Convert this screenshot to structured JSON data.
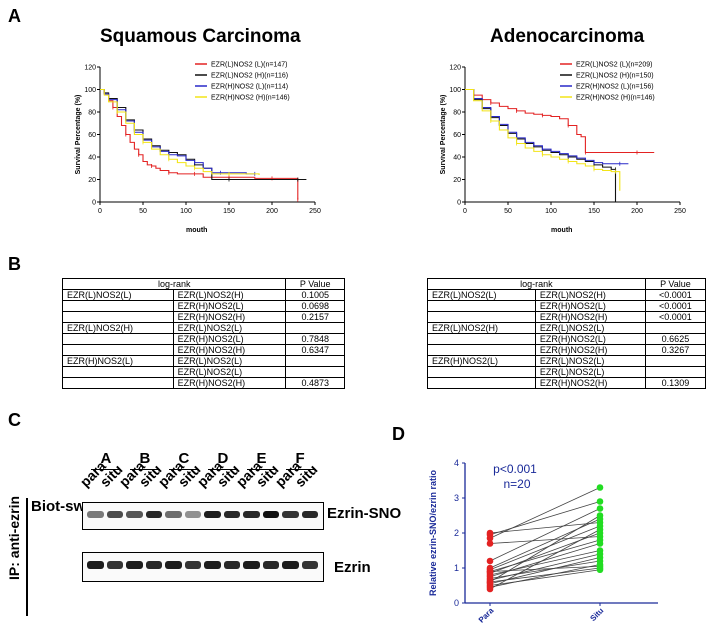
{
  "panels": {
    "a": "A",
    "b": "B",
    "c": "C",
    "d": "D"
  },
  "km": [
    {
      "title": "Squamous Carcinoma",
      "ylabel": "Survival Percentage (%)",
      "xlabel": "mouth",
      "xticks": [
        0,
        50,
        100,
        150,
        200,
        250
      ],
      "yticks": [
        0,
        20,
        40,
        60,
        80,
        100,
        120
      ],
      "legend": [
        "EZR(L)NOS2 (L)(n=147)",
        "EZR(L)NOS2 (H)(n=116)",
        "EZR(H)NOS2 (L)(n=114)",
        "EZR(H)NOS2 (H)(n=146)"
      ],
      "series": [
        {
          "color": "#e32222",
          "points": [
            [
              0,
              100
            ],
            [
              5,
              96
            ],
            [
              10,
              90
            ],
            [
              15,
              84
            ],
            [
              20,
              76
            ],
            [
              25,
              68
            ],
            [
              30,
              60
            ],
            [
              35,
              53
            ],
            [
              40,
              47
            ],
            [
              45,
              42
            ],
            [
              50,
              36
            ],
            [
              55,
              33
            ],
            [
              60,
              32
            ],
            [
              65,
              30
            ],
            [
              70,
              28
            ],
            [
              80,
              26
            ],
            [
              90,
              25
            ],
            [
              100,
              25
            ],
            [
              110,
              25
            ],
            [
              120,
              22
            ],
            [
              130,
              22
            ],
            [
              150,
              22
            ],
            [
              170,
              22
            ],
            [
              180,
              21
            ],
            [
              200,
              21
            ],
            [
              210,
              21
            ],
            [
              230,
              21
            ],
            [
              230,
              2
            ]
          ]
        },
        {
          "color": "#111111",
          "points": [
            [
              0,
              100
            ],
            [
              5,
              97
            ],
            [
              10,
              92
            ],
            [
              20,
              84
            ],
            [
              30,
              73
            ],
            [
              40,
              64
            ],
            [
              50,
              56
            ],
            [
              60,
              50
            ],
            [
              70,
              46
            ],
            [
              80,
              44
            ],
            [
              90,
              42
            ],
            [
              100,
              38
            ],
            [
              110,
              33
            ],
            [
              120,
              30
            ],
            [
              130,
              20
            ],
            [
              150,
              20
            ],
            [
              170,
              20
            ],
            [
              200,
              20
            ],
            [
              230,
              20
            ],
            [
              240,
              20
            ]
          ]
        },
        {
          "color": "#2828c8",
          "points": [
            [
              0,
              100
            ],
            [
              5,
              96
            ],
            [
              10,
              91
            ],
            [
              20,
              82
            ],
            [
              30,
              72
            ],
            [
              40,
              62
            ],
            [
              50,
              55
            ],
            [
              60,
              49
            ],
            [
              70,
              45
            ],
            [
              80,
              42
            ],
            [
              90,
              41
            ],
            [
              100,
              37
            ],
            [
              110,
              35
            ],
            [
              120,
              30
            ],
            [
              130,
              26
            ],
            [
              140,
              26
            ],
            [
              160,
              26
            ],
            [
              170,
              25
            ],
            [
              180,
              25
            ]
          ]
        },
        {
          "color": "#f2e418",
          "points": [
            [
              0,
              100
            ],
            [
              5,
              95
            ],
            [
              10,
              89
            ],
            [
              20,
              80
            ],
            [
              30,
              70
            ],
            [
              40,
              60
            ],
            [
              50,
              53
            ],
            [
              60,
              47
            ],
            [
              70,
              42
            ],
            [
              80,
              38
            ],
            [
              90,
              35
            ],
            [
              100,
              32
            ],
            [
              110,
              30
            ],
            [
              120,
              27
            ],
            [
              130,
              25
            ],
            [
              150,
              25
            ],
            [
              170,
              25
            ],
            [
              185,
              24
            ]
          ]
        }
      ]
    },
    {
      "title": "Adenocarcinoma",
      "ylabel": "Survival Percentage (%)",
      "xlabel": "mouth",
      "xticks": [
        0,
        50,
        100,
        150,
        200,
        250
      ],
      "yticks": [
        0,
        20,
        40,
        60,
        80,
        100,
        120
      ],
      "legend": [
        "EZR(L)NOS2 (L)(n=209)",
        "EZR(L)NOS2 (H)(n=150)",
        "EZR(H)NOS2 (L)(n=156)",
        "EZR(H)NOS2 (H)(n=146)"
      ],
      "series": [
        {
          "color": "#e32222",
          "points": [
            [
              0,
              100
            ],
            [
              10,
              95
            ],
            [
              20,
              91
            ],
            [
              30,
              88
            ],
            [
              40,
              85
            ],
            [
              50,
              83
            ],
            [
              60,
              81
            ],
            [
              70,
              79
            ],
            [
              80,
              78
            ],
            [
              90,
              77
            ],
            [
              100,
              76
            ],
            [
              110,
              74
            ],
            [
              120,
              68
            ],
            [
              130,
              60
            ],
            [
              135,
              58
            ],
            [
              140,
              44
            ],
            [
              160,
              44
            ],
            [
              180,
              44
            ],
            [
              200,
              44
            ],
            [
              220,
              44
            ]
          ]
        },
        {
          "color": "#111111",
          "points": [
            [
              0,
              100
            ],
            [
              10,
              91
            ],
            [
              20,
              83
            ],
            [
              30,
              75
            ],
            [
              40,
              68
            ],
            [
              50,
              61
            ],
            [
              60,
              56
            ],
            [
              70,
              52
            ],
            [
              80,
              49
            ],
            [
              90,
              46
            ],
            [
              100,
              44
            ],
            [
              110,
              42
            ],
            [
              120,
              40
            ],
            [
              130,
              38
            ],
            [
              140,
              36
            ],
            [
              150,
              33
            ],
            [
              160,
              31
            ],
            [
              170,
              29
            ],
            [
              175,
              29
            ],
            [
              175,
              0
            ]
          ]
        },
        {
          "color": "#2828c8",
          "points": [
            [
              0,
              100
            ],
            [
              10,
              92
            ],
            [
              20,
              84
            ],
            [
              30,
              76
            ],
            [
              40,
              69
            ],
            [
              50,
              62
            ],
            [
              60,
              57
            ],
            [
              70,
              53
            ],
            [
              80,
              50
            ],
            [
              90,
              47
            ],
            [
              100,
              45
            ],
            [
              110,
              43
            ],
            [
              120,
              41
            ],
            [
              130,
              39
            ],
            [
              140,
              37
            ],
            [
              150,
              35
            ],
            [
              160,
              34
            ],
            [
              170,
              34
            ],
            [
              180,
              34
            ],
            [
              190,
              34
            ]
          ]
        },
        {
          "color": "#f2e418",
          "points": [
            [
              0,
              100
            ],
            [
              10,
              90
            ],
            [
              20,
              81
            ],
            [
              30,
              72
            ],
            [
              40,
              64
            ],
            [
              50,
              57
            ],
            [
              60,
              52
            ],
            [
              70,
              48
            ],
            [
              80,
              45
            ],
            [
              90,
              42
            ],
            [
              100,
              40
            ],
            [
              110,
              38
            ],
            [
              120,
              36
            ],
            [
              130,
              34
            ],
            [
              140,
              32
            ],
            [
              150,
              29
            ],
            [
              160,
              28
            ],
            [
              170,
              27
            ],
            [
              175,
              27
            ],
            [
              180,
              20
            ],
            [
              180,
              10
            ]
          ]
        }
      ]
    }
  ],
  "tables": [
    {
      "header": [
        "log-rank",
        "P Value"
      ],
      "rows": [
        [
          "EZR(L)NOS2(L)",
          "EZR(L)NOS2(H)",
          "0.1005"
        ],
        [
          "",
          "EZR(H)NOS2(L)",
          "0.0698"
        ],
        [
          "",
          "EZR(H)NOS2(H)",
          "0.2157"
        ],
        [
          "EZR(L)NOS2(H)",
          "EZR(L)NOS2(L)",
          ""
        ],
        [
          "",
          "EZR(H)NOS2(L)",
          "0.7848"
        ],
        [
          "",
          "EZR(H)NOS2(H)",
          "0.6347"
        ],
        [
          "EZR(H)NOS2(L)",
          "EZR(L)NOS2(L)",
          ""
        ],
        [
          "",
          "EZR(L)NOS2(L)",
          ""
        ],
        [
          "",
          "EZR(H)NOS2(H)",
          "0.4873"
        ]
      ]
    },
    {
      "header": [
        "log-rank",
        "P Value"
      ],
      "rows": [
        [
          "EZR(L)NOS2(L)",
          "EZR(L)NOS2(H)",
          "<0.0001"
        ],
        [
          "",
          "EZR(H)NOS2(L)",
          "<0.0001"
        ],
        [
          "",
          "EZR(H)NOS2(H)",
          "<0.0001"
        ],
        [
          "EZR(L)NOS2(H)",
          "EZR(L)NOS2(L)",
          ""
        ],
        [
          "",
          "EZR(H)NOS2(L)",
          "0.6625"
        ],
        [
          "",
          "EZR(H)NOS2(H)",
          "0.3267"
        ],
        [
          "EZR(H)NOS2(L)",
          "EZR(L)NOS2(L)",
          ""
        ],
        [
          "",
          "EZR(L)NOS2(L)",
          ""
        ],
        [
          "",
          "EZR(H)NOS2(H)",
          "0.1309"
        ]
      ]
    }
  ],
  "blot": {
    "groups": [
      "A",
      "B",
      "C",
      "D",
      "E",
      "F"
    ],
    "lanes": [
      "para",
      "situ",
      "para",
      "situ",
      "para",
      "situ",
      "para",
      "situ",
      "para",
      "situ",
      "para",
      "situ"
    ],
    "ip_label": "IP: anti-ezrin",
    "left_label": "Biot-sw",
    "band1_label": "Ezrin-SNO",
    "band2_label": "Ezrin",
    "band1_intensity": [
      0.55,
      0.75,
      0.7,
      0.9,
      0.6,
      0.45,
      0.95,
      0.9,
      0.9,
      1.0,
      0.85,
      0.9
    ],
    "band2_intensity": [
      0.95,
      0.85,
      0.95,
      0.9,
      0.95,
      0.85,
      0.95,
      0.9,
      0.95,
      0.9,
      0.95,
      0.85
    ]
  },
  "chart_data": {
    "type": "scatter",
    "title": "",
    "ylabel": "Relative ezrin-SNO/ezrin ratio",
    "xlabel": "",
    "categories": [
      "Para",
      "Situ"
    ],
    "ylim": [
      0,
      4
    ],
    "yticks": [
      0,
      1,
      2,
      3,
      4
    ],
    "annotation": "p<0.001",
    "annotation2": "n=20",
    "pairs": [
      [
        2.0,
        2.3
      ],
      [
        1.95,
        2.9
      ],
      [
        1.85,
        3.3
      ],
      [
        1.7,
        1.9
      ],
      [
        1.2,
        2.7
      ],
      [
        1.0,
        2.4
      ],
      [
        0.95,
        2.2
      ],
      [
        0.9,
        1.8
      ],
      [
        0.85,
        2.0
      ],
      [
        0.8,
        1.5
      ],
      [
        0.75,
        1.7
      ],
      [
        0.7,
        1.2
      ],
      [
        0.65,
        1.4
      ],
      [
        0.6,
        1.0
      ],
      [
        0.55,
        1.3
      ],
      [
        0.5,
        0.95
      ],
      [
        0.45,
        1.1
      ],
      [
        0.4,
        2.1
      ],
      [
        0.9,
        1.05
      ],
      [
        0.6,
        2.5
      ]
    ],
    "colors": {
      "Para": "#e32222",
      "Situ": "#22dd22"
    }
  }
}
